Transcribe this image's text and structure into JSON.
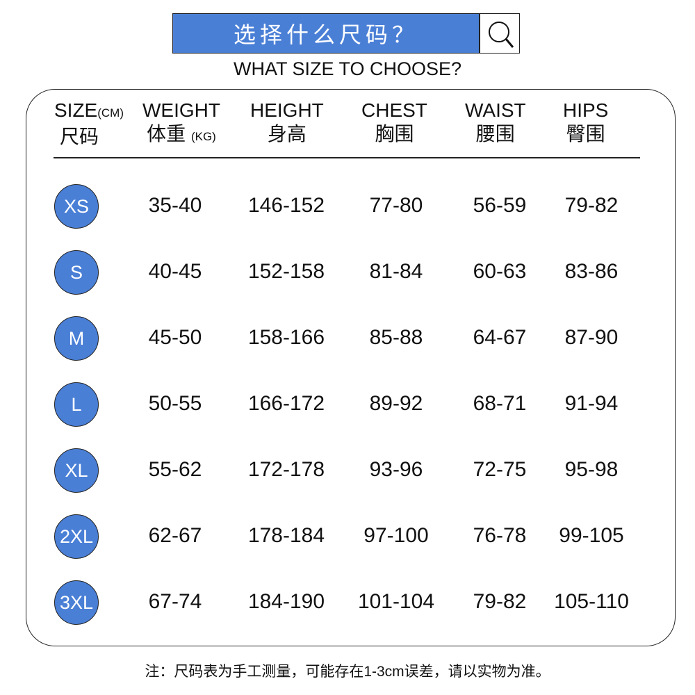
{
  "header": {
    "title_cn": "选择什么尺码？",
    "subtitle": "WHAT SIZE TO CHOOSE?",
    "search_icon": "magnifier-icon"
  },
  "table": {
    "headers": [
      {
        "en": "SIZE",
        "unit": "(CM)",
        "cn": "尺码"
      },
      {
        "en": "WEIGHT",
        "cn": "体重",
        "unit": "(KG)"
      },
      {
        "en": "HEIGHT",
        "cn": "身高"
      },
      {
        "en": "CHEST",
        "cn": "胸围"
      },
      {
        "en": "WAIST",
        "cn": "腰围"
      },
      {
        "en": "HIPS",
        "cn": "臀围"
      }
    ],
    "rows": [
      [
        "XS",
        "35-40",
        "146-152",
        "77-80",
        "56-59",
        "79-82"
      ],
      [
        "S",
        "40-45",
        "152-158",
        "81-84",
        "60-63",
        "83-86"
      ],
      [
        "M",
        "45-50",
        "158-166",
        "85-88",
        "64-67",
        "87-90"
      ],
      [
        "L",
        "50-55",
        "166-172",
        "89-92",
        "68-71",
        "91-94"
      ],
      [
        "XL",
        "55-62",
        "172-178",
        "93-96",
        "72-75",
        "95-98"
      ],
      [
        "2XL",
        "62-67",
        "178-184",
        "97-100",
        "76-78",
        "99-105"
      ],
      [
        "3XL",
        "67-74",
        "184-190",
        "101-104",
        "79-82",
        "105-110"
      ]
    ]
  },
  "note": "注：尺码表为手工测量，可能存在1-3cm误差，请以实物为准。",
  "colors": {
    "accent": "#4a7fd6"
  }
}
